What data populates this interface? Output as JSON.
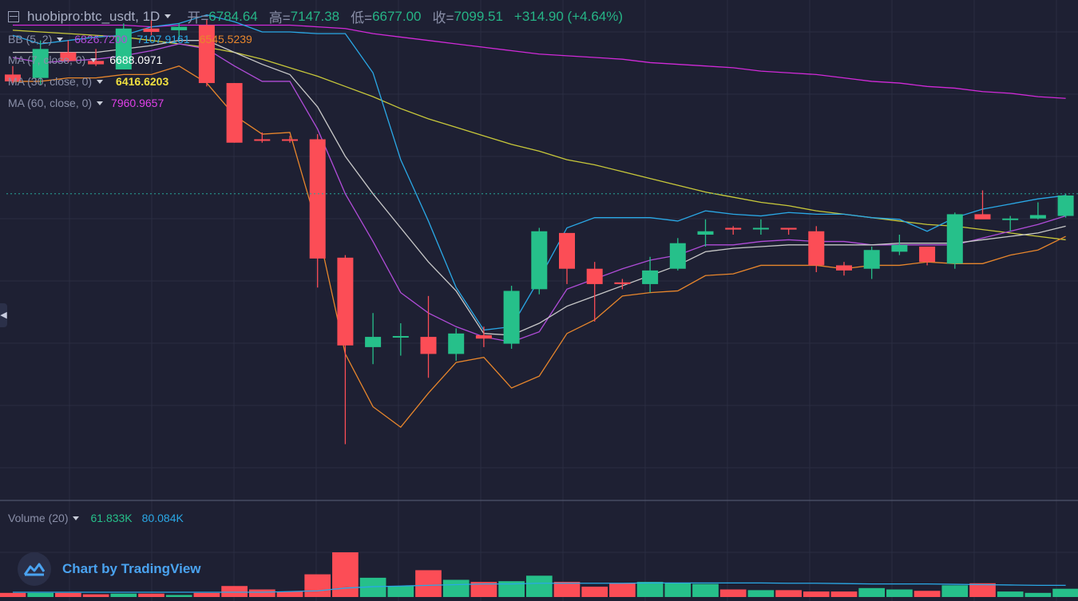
{
  "header": {
    "symbol": "huobipro:btc_usdt, 1D",
    "open_label": "开=",
    "open_value": "6784.64",
    "high_label": "高=",
    "high_value": "7147.38",
    "low_label": "低=",
    "low_value": "6677.00",
    "close_label": "收=",
    "close_value": "7099.51",
    "change": "+314.90 (+4.64%)"
  },
  "indicators": {
    "bb": {
      "label": "BB (5, 2)",
      "v1": "6826.7200",
      "v2": "7107.9161",
      "v3": "6545.5239",
      "c1": "#b04cd8",
      "c2": "#2aa8e6",
      "c3": "#e8862c"
    },
    "ma7": {
      "label": "MA (7, close, 0)",
      "value": "6688.0971",
      "color": "#c8c8c8"
    },
    "ma30": {
      "label": "MA (30, close, 0)",
      "value": "6416.6203",
      "color": "#c8c83a"
    },
    "ma60": {
      "label": "MA (60, close, 0)",
      "value": "7960.9657",
      "color": "#d02ad8"
    }
  },
  "volume": {
    "label": "Volume (20)",
    "v1": "61.833K",
    "v2": "80.084K"
  },
  "branding": {
    "text": "Chart by TradingView"
  },
  "colors": {
    "up": "#26c08a",
    "down": "#fc4d56",
    "bg": "#1e2033",
    "grid": "#2a2d42"
  },
  "chart_data": {
    "type": "candlestick",
    "ylim": [
      5500,
      8400
    ],
    "volume_max": 260,
    "candles": [
      {
        "o": 8000,
        "h": 8050,
        "l": 7950,
        "c": 7960,
        "v": 12
      },
      {
        "o": 7980,
        "h": 8200,
        "l": 7940,
        "c": 8150,
        "v": 12
      },
      {
        "o": 8130,
        "h": 8200,
        "l": 8070,
        "c": 8080,
        "v": 12
      },
      {
        "o": 8080,
        "h": 8150,
        "l": 8050,
        "c": 8060,
        "v": 8
      },
      {
        "o": 8030,
        "h": 8300,
        "l": 8030,
        "c": 8270,
        "v": 10
      },
      {
        "o": 8270,
        "h": 8320,
        "l": 8230,
        "c": 8250,
        "v": 10
      },
      {
        "o": 8260,
        "h": 8300,
        "l": 8210,
        "c": 8280,
        "v": 6
      },
      {
        "o": 8290,
        "h": 8320,
        "l": 7930,
        "c": 7950,
        "v": 12
      },
      {
        "o": 7950,
        "h": 7950,
        "l": 7600,
        "c": 7600,
        "v": 32
      },
      {
        "o": 7620,
        "h": 7660,
        "l": 7600,
        "c": 7615,
        "v": 22
      },
      {
        "o": 7620,
        "h": 7640,
        "l": 7600,
        "c": 7615,
        "v": 16
      },
      {
        "o": 7620,
        "h": 7650,
        "l": 6750,
        "c": 6920,
        "v": 66
      },
      {
        "o": 6925,
        "h": 6940,
        "l": 5830,
        "c": 6410,
        "v": 130
      },
      {
        "o": 6400,
        "h": 6600,
        "l": 6300,
        "c": 6460,
        "v": 56
      },
      {
        "o": 6460,
        "h": 6540,
        "l": 6350,
        "c": 6465,
        "v": 32
      },
      {
        "o": 6460,
        "h": 6700,
        "l": 6220,
        "c": 6360,
        "v": 78
      },
      {
        "o": 6360,
        "h": 6510,
        "l": 6320,
        "c": 6480,
        "v": 50
      },
      {
        "o": 6470,
        "h": 6520,
        "l": 6400,
        "c": 6450,
        "v": 44
      },
      {
        "o": 6420,
        "h": 6760,
        "l": 6390,
        "c": 6730,
        "v": 46
      },
      {
        "o": 6740,
        "h": 7100,
        "l": 6710,
        "c": 7080,
        "v": 62
      },
      {
        "o": 7070,
        "h": 7070,
        "l": 6770,
        "c": 6860,
        "v": 44
      },
      {
        "o": 6860,
        "h": 6900,
        "l": 6550,
        "c": 6770,
        "v": 30
      },
      {
        "o": 6780,
        "h": 6800,
        "l": 6740,
        "c": 6770,
        "v": 40
      },
      {
        "o": 6770,
        "h": 6930,
        "l": 6720,
        "c": 6850,
        "v": 44
      },
      {
        "o": 6860,
        "h": 7040,
        "l": 6850,
        "c": 7010,
        "v": 40
      },
      {
        "o": 7060,
        "h": 7150,
        "l": 6990,
        "c": 7080,
        "v": 38
      },
      {
        "o": 7100,
        "h": 7110,
        "l": 7060,
        "c": 7090,
        "v": 22
      },
      {
        "o": 7100,
        "h": 7150,
        "l": 7060,
        "c": 7100,
        "v": 20
      },
      {
        "o": 7100,
        "h": 7100,
        "l": 7060,
        "c": 7090,
        "v": 20
      },
      {
        "o": 7080,
        "h": 7110,
        "l": 6840,
        "c": 6880,
        "v": 16
      },
      {
        "o": 6880,
        "h": 6900,
        "l": 6820,
        "c": 6850,
        "v": 16
      },
      {
        "o": 6860,
        "h": 6990,
        "l": 6800,
        "c": 6970,
        "v": 26
      },
      {
        "o": 6960,
        "h": 7060,
        "l": 6940,
        "c": 7000,
        "v": 22
      },
      {
        "o": 6990,
        "h": 6990,
        "l": 6880,
        "c": 6900,
        "v": 18
      },
      {
        "o": 6890,
        "h": 7190,
        "l": 6860,
        "c": 7180,
        "v": 34
      },
      {
        "o": 7180,
        "h": 7320,
        "l": 7160,
        "c": 7150,
        "v": 40
      },
      {
        "o": 7150,
        "h": 7170,
        "l": 7080,
        "c": 7155,
        "v": 16
      },
      {
        "o": 7155,
        "h": 7250,
        "l": 7150,
        "c": 7175,
        "v": 12
      },
      {
        "o": 7170,
        "h": 7300,
        "l": 7160,
        "c": 7290,
        "v": 24
      }
    ],
    "bb_upper": [
      8230,
      8180,
      8200,
      8220,
      8230,
      8280,
      8300,
      8350,
      8310,
      8250,
      8250,
      8240,
      8240,
      8010,
      7500,
      7140,
      6750,
      6500,
      6520,
      6800,
      7100,
      7160,
      7160,
      7160,
      7140,
      7200,
      7180,
      7170,
      7190,
      7180,
      7180,
      7160,
      7150,
      7080,
      7160,
      7210,
      7240,
      7270,
      7290
    ],
    "bb_lower": [
      7960,
      7960,
      7980,
      7980,
      8000,
      8000,
      8050,
      7950,
      7760,
      7650,
      7660,
      7100,
      6360,
      6050,
      5930,
      6130,
      6310,
      6340,
      6160,
      6230,
      6480,
      6560,
      6700,
      6720,
      6730,
      6820,
      6830,
      6880,
      6880,
      6880,
      6860,
      6880,
      6880,
      6900,
      6890,
      6890,
      6940,
      6970,
      7050
    ],
    "bb_mid": [
      8100,
      8070,
      8080,
      8090,
      8110,
      8140,
      8180,
      8150,
      8050,
      7960,
      7960,
      7680,
      7300,
      7020,
      6720,
      6600,
      6520,
      6460,
      6430,
      6490,
      6740,
      6800,
      6860,
      6910,
      6940,
      7000,
      7000,
      7020,
      7030,
      7020,
      7020,
      7000,
      7000,
      7000,
      7000,
      7040,
      7080,
      7120,
      7170
    ],
    "ma7_vals": [
      8130,
      8130,
      8130,
      8130,
      8150,
      8170,
      8200,
      8200,
      8130,
      8060,
      8000,
      7810,
      7520,
      7300,
      7100,
      6900,
      6730,
      6480,
      6470,
      6540,
      6640,
      6700,
      6760,
      6820,
      6880,
      6960,
      6980,
      6990,
      7000,
      7000,
      7000,
      7000,
      7010,
      7010,
      7010,
      7030,
      7050,
      7070,
      7110
    ],
    "ma30_vals": [
      8260,
      8250,
      8240,
      8230,
      8220,
      8200,
      8180,
      8160,
      8130,
      8090,
      8040,
      7990,
      7930,
      7870,
      7800,
      7740,
      7690,
      7640,
      7590,
      7550,
      7500,
      7470,
      7430,
      7390,
      7350,
      7310,
      7280,
      7250,
      7230,
      7200,
      7180,
      7160,
      7140,
      7120,
      7110,
      7090,
      7070,
      7050,
      7030
    ],
    "ma60_vals": [
      8290,
      8290,
      8290,
      8290,
      8290,
      8280,
      8290,
      8290,
      8290,
      8290,
      8290,
      8280,
      8270,
      8240,
      8220,
      8200,
      8180,
      8160,
      8140,
      8120,
      8110,
      8100,
      8090,
      8070,
      8060,
      8050,
      8040,
      8020,
      8010,
      8000,
      7980,
      7960,
      7950,
      7930,
      7920,
      7900,
      7890,
      7870,
      7860
    ],
    "vol_ma": [
      14,
      14,
      14,
      14,
      14,
      14,
      14,
      14,
      14,
      14,
      16,
      18,
      26,
      30,
      32,
      34,
      36,
      38,
      38,
      40,
      40,
      40,
      40,
      41,
      41,
      41,
      41,
      41,
      40,
      40,
      39,
      38,
      38,
      38,
      37,
      36,
      35,
      34,
      34
    ],
    "last_price": 7300
  }
}
